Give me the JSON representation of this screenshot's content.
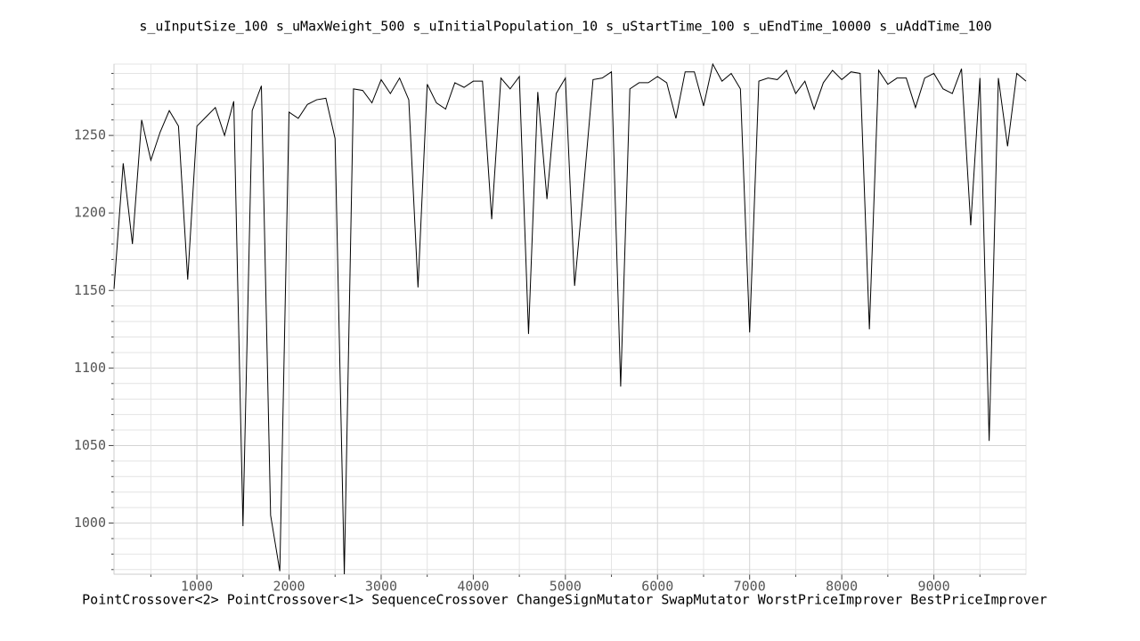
{
  "chart_data": {
    "type": "line",
    "title": "s_uInputSize_100 s_uMaxWeight_500 s_uInitialPopulation_10 s_uStartTime_100 s_uEndTime_10000 s_uAddTime_100",
    "xlabel": "PointCrossover<2> PointCrossover<1> SequenceCrossover ChangeSignMutator SwapMutator WorstPriceImprover BestPriceImprover",
    "x": [
      100,
      200,
      300,
      400,
      500,
      600,
      700,
      800,
      900,
      1000,
      1100,
      1200,
      1300,
      1400,
      1500,
      1600,
      1700,
      1800,
      1900,
      2000,
      2100,
      2200,
      2300,
      2400,
      2500,
      2600,
      2700,
      2800,
      2900,
      3000,
      3100,
      3200,
      3300,
      3400,
      3500,
      3600,
      3700,
      3800,
      3900,
      4000,
      4100,
      4200,
      4300,
      4400,
      4500,
      4600,
      4700,
      4800,
      4900,
      5000,
      5100,
      5200,
      5300,
      5400,
      5500,
      5600,
      5700,
      5800,
      5900,
      6000,
      6100,
      6200,
      6300,
      6400,
      6500,
      6600,
      6700,
      6800,
      6900,
      7000,
      7100,
      7200,
      7300,
      7400,
      7500,
      7600,
      7700,
      7800,
      7900,
      8000,
      8100,
      8200,
      8300,
      8400,
      8500,
      8600,
      8700,
      8800,
      8900,
      9000,
      9100,
      9200,
      9300,
      9400,
      9500,
      9600,
      9700,
      9800,
      9900,
      10000
    ],
    "series": [
      {
        "color": "#000000",
        "values": [
          1151,
          1232,
          1180,
          1260,
          1234,
          1252,
          1266,
          1256,
          1157,
          1256,
          1262,
          1268,
          1250,
          1272,
          998,
          1266,
          1282,
          1005,
          969,
          1265,
          1261,
          1270,
          1273,
          1274,
          1248,
          967,
          1280,
          1279,
          1271,
          1286,
          1277,
          1287,
          1273,
          1152,
          1283,
          1271,
          1267,
          1284,
          1281,
          1285,
          1285,
          1196,
          1287,
          1280,
          1288,
          1122,
          1278,
          1209,
          1277,
          1287,
          1153,
          1218,
          1286,
          1287,
          1291,
          1088,
          1280,
          1284,
          1284,
          1288,
          1284,
          1261,
          1291,
          1291,
          1269,
          1296,
          1285,
          1290,
          1280,
          1123,
          1285,
          1287,
          1286,
          1292,
          1277,
          1285,
          1267,
          1284,
          1292,
          1286,
          1291,
          1290,
          1125,
          1292,
          1283,
          1287,
          1287,
          1268,
          1287,
          1290,
          1280,
          1277,
          1293,
          1192,
          1287,
          1053,
          1287,
          1243,
          1290,
          1285
        ]
      }
    ],
    "xlim": [
      100,
      10000
    ],
    "ylim": [
      967,
      1296
    ],
    "xticks": [
      1000,
      2000,
      3000,
      4000,
      5000,
      6000,
      7000,
      8000,
      9000
    ],
    "xminorticks": [
      500,
      1500,
      2500,
      3500,
      4500,
      5500,
      6500,
      7500,
      8500,
      9500
    ],
    "yticks": [
      1000,
      1050,
      1100,
      1150,
      1200,
      1250
    ],
    "yminorticks": [
      970,
      980,
      990,
      1010,
      1020,
      1030,
      1040,
      1060,
      1070,
      1080,
      1090,
      1110,
      1120,
      1130,
      1140,
      1160,
      1170,
      1180,
      1190,
      1210,
      1220,
      1230,
      1240,
      1260,
      1270,
      1280,
      1290
    ],
    "grid": true
  }
}
